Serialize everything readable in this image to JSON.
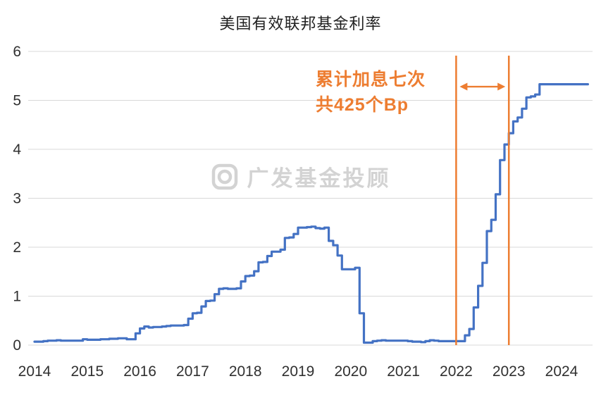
{
  "chart_data": {
    "type": "line",
    "title": "美国有效联邦基金利率",
    "watermark": "广发基金投顾",
    "x_start": 2014,
    "points_per_year": 12,
    "x_ticks": [
      2014,
      2015,
      2016,
      2017,
      2018,
      2019,
      2020,
      2021,
      2022,
      2023,
      2024
    ],
    "y_ticks": [
      0,
      1,
      2,
      3,
      4,
      5,
      6
    ],
    "ylim": [
      0,
      6
    ],
    "grid": true,
    "grid_color": "#D9D9D9",
    "series": [
      {
        "name": "美国有效联邦基金利率",
        "color": "#4472C4",
        "interpolation": "step-after",
        "values": [
          0.07,
          0.07,
          0.08,
          0.09,
          0.09,
          0.1,
          0.09,
          0.09,
          0.09,
          0.09,
          0.09,
          0.12,
          0.11,
          0.11,
          0.11,
          0.12,
          0.12,
          0.13,
          0.13,
          0.14,
          0.14,
          0.12,
          0.12,
          0.24,
          0.34,
          0.38,
          0.36,
          0.37,
          0.37,
          0.38,
          0.39,
          0.4,
          0.4,
          0.4,
          0.41,
          0.54,
          0.65,
          0.66,
          0.79,
          0.9,
          0.91,
          1.04,
          1.15,
          1.16,
          1.15,
          1.15,
          1.16,
          1.3,
          1.41,
          1.42,
          1.51,
          1.69,
          1.7,
          1.82,
          1.91,
          1.91,
          1.95,
          2.19,
          2.2,
          2.27,
          2.4,
          2.4,
          2.41,
          2.42,
          2.39,
          2.38,
          2.4,
          2.13,
          2.04,
          1.83,
          1.55,
          1.55,
          1.55,
          1.58,
          0.65,
          0.05,
          0.05,
          0.08,
          0.09,
          0.1,
          0.09,
          0.09,
          0.09,
          0.09,
          0.09,
          0.08,
          0.07,
          0.07,
          0.06,
          0.08,
          0.1,
          0.09,
          0.08,
          0.08,
          0.08,
          0.08,
          0.08,
          0.08,
          0.2,
          0.33,
          0.77,
          1.21,
          1.68,
          2.33,
          2.56,
          3.08,
          3.78,
          4.1,
          4.33,
          4.57,
          4.65,
          4.83,
          5.06,
          5.08,
          5.12,
          5.33,
          5.33,
          5.33,
          5.33,
          5.33,
          5.33,
          5.33,
          5.33,
          5.33,
          5.33,
          5.33,
          5.33
        ]
      }
    ],
    "annotations": {
      "hike_label_line1": "累计加息七次",
      "hike_label_line2": "共425个Bp",
      "color": "#ED7D31",
      "vline_x": [
        2022.0,
        2023.0
      ],
      "arrow": {
        "x_from": 2022.0,
        "x_to": 2023.0,
        "y_value": 5.28
      }
    }
  }
}
